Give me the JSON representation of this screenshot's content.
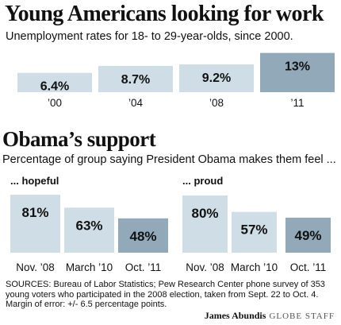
{
  "titles": {
    "main": "Young Americans looking for work",
    "main_sub": "Unemployment rates for 18- to 29-year-olds, since 2000.",
    "support": "Obama’s support",
    "support_sub": "Percentage of group saying President Obama makes them feel ..."
  },
  "colors": {
    "bar_light": "#cfdde6",
    "bar_dark": "#91a9b8"
  },
  "chart_data": [
    {
      "type": "bar",
      "title": "Young Americans looking for work",
      "subtitle": "Unemployment rates for 18- to 29-year-olds, since 2000.",
      "categories": [
        "’00",
        "’04",
        "’08",
        "’11"
      ],
      "values": [
        6.4,
        8.7,
        9.2,
        13
      ],
      "labels": [
        "6.4%",
        "8.7%",
        "9.2%",
        "13%"
      ],
      "highlight": [
        false,
        false,
        false,
        true
      ],
      "ylim": [
        0,
        15
      ]
    },
    {
      "type": "bar",
      "title": "... hopeful",
      "categories": [
        "Nov. ’08",
        "March ’10",
        "Oct. ’11"
      ],
      "values": [
        81,
        63,
        48
      ],
      "labels": [
        "81%",
        "63%",
        "48%"
      ],
      "highlight": [
        false,
        false,
        true
      ],
      "ylim": [
        0,
        100
      ]
    },
    {
      "type": "bar",
      "title": "... proud",
      "categories": [
        "Nov. ’08",
        "March ’10",
        "Oct. ’11"
      ],
      "values": [
        80,
        57,
        49
      ],
      "labels": [
        "80%",
        "57%",
        "49%"
      ],
      "highlight": [
        false,
        false,
        true
      ],
      "ylim": [
        0,
        100
      ]
    }
  ],
  "footer": {
    "sources": "SOURCES: Bureau of Labor Statistics; Pew Research Center phone survey of 353 young voters who participated in the 2008 election, taken from Sept. 22 to Oct. 4. Margin of error: +/- 6.5 percentage points.",
    "credit_name": "James Abundis",
    "credit_org": "GLOBE STAFF"
  }
}
